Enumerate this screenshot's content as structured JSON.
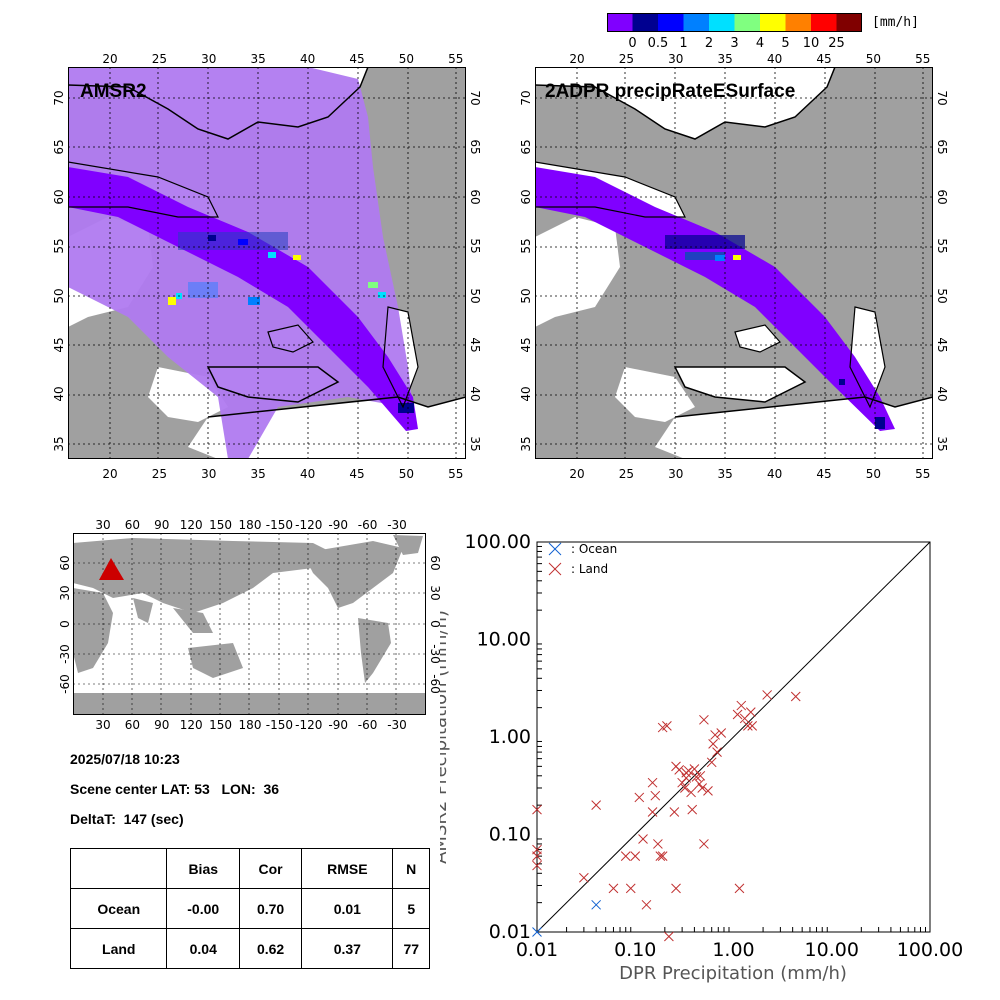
{
  "colorbar": {
    "unit_label": "[mm/h]",
    "colors": [
      "#8000ff",
      "#000090",
      "#0000ff",
      "#0080ff",
      "#00e0ff",
      "#80ff80",
      "#ffff00",
      "#ff8000",
      "#ff0000",
      "#800000"
    ],
    "ticks": [
      "0",
      "0.5",
      "1",
      "2",
      "3",
      "4",
      "5",
      "10",
      "25"
    ]
  },
  "map_left": {
    "title": "AMSR2",
    "lon_ticks": [
      "20",
      "25",
      "30",
      "35",
      "40",
      "45",
      "50",
      "55"
    ],
    "lat_ticks": [
      "70",
      "65",
      "60",
      "55",
      "50",
      "45",
      "40",
      "35"
    ],
    "colors": {
      "land": "#a0a0a0",
      "ocean": "#ffffff",
      "light_precip": "#b07af0",
      "purple": "#8000ff"
    }
  },
  "map_right": {
    "title": "2ADPR precipRateESurface",
    "lon_ticks": [
      "20",
      "25",
      "30",
      "35",
      "40",
      "45",
      "50",
      "55"
    ],
    "lat_ticks": [
      "70",
      "65",
      "60",
      "55",
      "50",
      "45",
      "40",
      "35"
    ]
  },
  "world_map": {
    "lon_ticks": [
      "30",
      "60",
      "90",
      "120",
      "150",
      "180",
      "-150",
      "-120",
      "-90",
      "-60",
      "-30"
    ],
    "lat_ticks": [
      "60",
      "30",
      "0",
      "-30",
      "-60"
    ],
    "marker_color": "#cc0000"
  },
  "scene": {
    "datetime": "2025/07/18 10:23",
    "center_line": "Scene center LAT: 53   LON:  36",
    "deltat_line": "DeltaT:  147 (sec)"
  },
  "stats_table": {
    "headers": [
      "",
      "Bias",
      "Cor",
      "RMSE",
      "N"
    ],
    "rows": [
      [
        "Ocean",
        "-0.00",
        "0.70",
        "0.01",
        "5"
      ],
      [
        "Land",
        "0.04",
        "0.62",
        "0.37",
        "77"
      ]
    ]
  },
  "chart_data": {
    "type": "scatter",
    "xlabel": "DPR Precipitation (mm/h)",
    "ylabel": "AMSR2 Precipitation (mm/h)",
    "xscale": "log",
    "yscale": "log",
    "xlim": [
      0.01,
      100
    ],
    "ylim": [
      0.01,
      100
    ],
    "tick_labels": [
      "0.01",
      "0.10",
      "1.00",
      "10.00",
      "100.00"
    ],
    "legend_position": "top-left",
    "one_to_one_line": true,
    "series": [
      {
        "name": ": Ocean",
        "color": "#1060d0",
        "marker": "x",
        "points": [
          [
            0.01,
            0.01
          ],
          [
            0.04,
            0.019
          ]
        ]
      },
      {
        "name": ": Land",
        "color": "#c03030",
        "marker": "x",
        "points": [
          [
            0.01,
            0.18
          ],
          [
            0.01,
            0.07
          ],
          [
            0.01,
            0.06
          ],
          [
            0.01,
            0.048
          ],
          [
            0.03,
            0.036
          ],
          [
            0.04,
            0.2
          ],
          [
            0.06,
            0.028
          ],
          [
            0.08,
            0.06
          ],
          [
            0.09,
            0.028
          ],
          [
            0.1,
            0.06
          ],
          [
            0.11,
            0.24
          ],
          [
            0.12,
            0.09
          ],
          [
            0.13,
            0.019
          ],
          [
            0.15,
            0.17
          ],
          [
            0.15,
            0.34
          ],
          [
            0.16,
            0.25
          ],
          [
            0.17,
            0.08
          ],
          [
            0.18,
            0.06
          ],
          [
            0.19,
            0.06
          ],
          [
            0.19,
            1.25
          ],
          [
            0.21,
            1.3
          ],
          [
            0.22,
            0.009
          ],
          [
            0.25,
            0.17
          ],
          [
            0.26,
            0.5
          ],
          [
            0.26,
            0.028
          ],
          [
            0.28,
            0.46
          ],
          [
            0.3,
            0.34
          ],
          [
            0.32,
            0.3
          ],
          [
            0.33,
            0.43
          ],
          [
            0.35,
            0.45
          ],
          [
            0.37,
            0.27
          ],
          [
            0.38,
            0.18
          ],
          [
            0.4,
            0.47
          ],
          [
            0.42,
            0.39
          ],
          [
            0.45,
            0.33
          ],
          [
            0.48,
            0.3
          ],
          [
            0.5,
            0.08
          ],
          [
            0.5,
            1.5
          ],
          [
            0.55,
            0.28
          ],
          [
            0.6,
            0.55
          ],
          [
            0.62,
            0.85
          ],
          [
            0.65,
            1.05
          ],
          [
            0.68,
            0.7
          ],
          [
            1.1,
            1.7
          ],
          [
            1.15,
            0.028
          ],
          [
            1.2,
            2.1
          ],
          [
            1.3,
            1.55
          ],
          [
            1.4,
            1.3
          ],
          [
            1.5,
            1.8
          ],
          [
            1.55,
            1.3
          ],
          [
            2.2,
            2.7
          ],
          [
            4.3,
            2.6
          ],
          [
            0.75,
            1.1
          ],
          [
            0.33,
            0.38
          ],
          [
            0.46,
            0.4
          ]
        ]
      }
    ]
  }
}
